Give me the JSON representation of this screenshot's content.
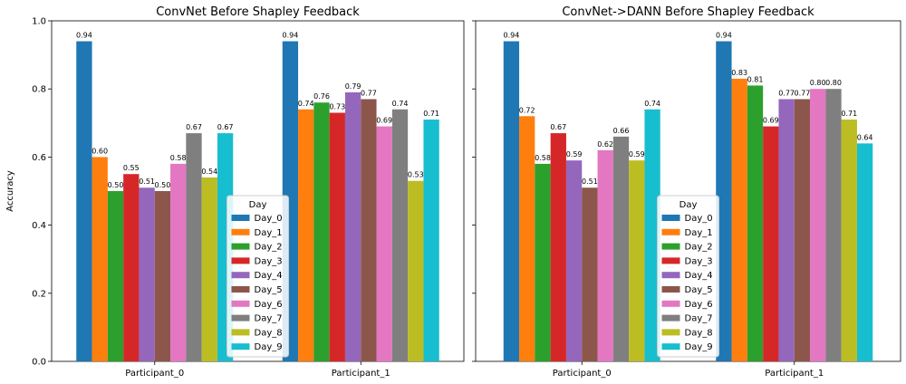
{
  "chart_data": [
    {
      "type": "bar",
      "title": "ConvNet Before Shapley Feedback",
      "xlabel": "",
      "ylabel": "Accuracy",
      "ylim": [
        0,
        1.0
      ],
      "yticks": [
        "0.0",
        "0.2",
        "0.4",
        "0.6",
        "0.8",
        "1.0"
      ],
      "categories": [
        "Participant_0",
        "Participant_1"
      ],
      "grid": false,
      "legend": {
        "title": "Day",
        "placement": "bottom-center"
      },
      "series": [
        {
          "name": "Day_0",
          "color": "#1f77b4",
          "values": [
            0.94,
            0.94
          ],
          "labels": [
            "0.94",
            "0.94"
          ]
        },
        {
          "name": "Day_1",
          "color": "#ff7f0e",
          "values": [
            0.6,
            0.74
          ],
          "labels": [
            "0.60",
            "0.74"
          ]
        },
        {
          "name": "Day_2",
          "color": "#2ca02c",
          "values": [
            0.5,
            0.76
          ],
          "labels": [
            "0.50",
            "0.76"
          ]
        },
        {
          "name": "Day_3",
          "color": "#d62728",
          "values": [
            0.55,
            0.73
          ],
          "labels": [
            "0.55",
            "0.73"
          ]
        },
        {
          "name": "Day_4",
          "color": "#9467bd",
          "values": [
            0.51,
            0.79
          ],
          "labels": [
            "0.51",
            "0.79"
          ]
        },
        {
          "name": "Day_5",
          "color": "#8c564b",
          "values": [
            0.5,
            0.77
          ],
          "labels": [
            "0.50",
            "0.77"
          ]
        },
        {
          "name": "Day_6",
          "color": "#e377c2",
          "values": [
            0.58,
            0.69
          ],
          "labels": [
            "0.58",
            "0.69"
          ]
        },
        {
          "name": "Day_7",
          "color": "#7f7f7f",
          "values": [
            0.67,
            0.74
          ],
          "labels": [
            "0.67",
            "0.74"
          ]
        },
        {
          "name": "Day_8",
          "color": "#bcbd22",
          "values": [
            0.54,
            0.53
          ],
          "labels": [
            "0.54",
            "0.53"
          ]
        },
        {
          "name": "Day_9",
          "color": "#17becf",
          "values": [
            0.67,
            0.71
          ],
          "labels": [
            "0.67",
            "0.71"
          ]
        }
      ]
    },
    {
      "type": "bar",
      "title": "ConvNet->DANN Before Shapley Feedback",
      "xlabel": "",
      "ylabel": "",
      "ylim": [
        0,
        1.0
      ],
      "yticks": [],
      "categories": [
        "Participant_0",
        "Participant_1"
      ],
      "grid": false,
      "legend": {
        "title": "Day",
        "placement": "bottom-center"
      },
      "series": [
        {
          "name": "Day_0",
          "color": "#1f77b4",
          "values": [
            0.94,
            0.94
          ],
          "labels": [
            "0.94",
            "0.94"
          ]
        },
        {
          "name": "Day_1",
          "color": "#ff7f0e",
          "values": [
            0.72,
            0.83
          ],
          "labels": [
            "0.72",
            "0.83"
          ]
        },
        {
          "name": "Day_2",
          "color": "#2ca02c",
          "values": [
            0.58,
            0.81
          ],
          "labels": [
            "0.58",
            "0.81"
          ]
        },
        {
          "name": "Day_3",
          "color": "#d62728",
          "values": [
            0.67,
            0.69
          ],
          "labels": [
            "0.67",
            "0.69"
          ]
        },
        {
          "name": "Day_4",
          "color": "#9467bd",
          "values": [
            0.59,
            0.77
          ],
          "labels": [
            "0.59",
            "0.77"
          ]
        },
        {
          "name": "Day_5",
          "color": "#8c564b",
          "values": [
            0.51,
            0.77
          ],
          "labels": [
            "0.51",
            "0.77"
          ]
        },
        {
          "name": "Day_6",
          "color": "#e377c2",
          "values": [
            0.62,
            0.8
          ],
          "labels": [
            "0.62",
            "0.80"
          ]
        },
        {
          "name": "Day_7",
          "color": "#7f7f7f",
          "values": [
            0.66,
            0.8
          ],
          "labels": [
            "0.66",
            "0.80"
          ]
        },
        {
          "name": "Day_8",
          "color": "#bcbd22",
          "values": [
            0.59,
            0.71
          ],
          "labels": [
            "0.59",
            "0.71"
          ]
        },
        {
          "name": "Day_9",
          "color": "#17becf",
          "values": [
            0.74,
            0.64
          ],
          "labels": [
            "0.74",
            "0.64"
          ]
        }
      ]
    }
  ]
}
